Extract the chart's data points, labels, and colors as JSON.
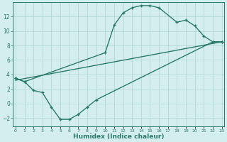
{
  "line1_x": [
    0,
    1,
    10,
    11,
    12,
    13,
    14,
    15,
    16,
    18,
    19,
    20,
    21,
    22,
    23
  ],
  "line1_y": [
    3.5,
    3.0,
    7.0,
    10.8,
    12.5,
    13.2,
    13.5,
    13.5,
    13.2,
    11.2,
    11.5,
    10.7,
    9.3,
    8.5,
    8.5
  ],
  "line2_x": [
    0,
    1,
    2,
    3,
    4,
    5,
    6,
    7,
    8,
    9,
    22,
    23
  ],
  "line2_y": [
    3.5,
    3.0,
    1.8,
    1.5,
    -0.5,
    -2.2,
    -2.2,
    -1.5,
    -0.5,
    0.5,
    8.5,
    8.5
  ],
  "line3_x": [
    0,
    23
  ],
  "line3_y": [
    3.2,
    8.5
  ],
  "color": "#2a7a6a",
  "bg_color": "#d4eeed",
  "grid_color": "#aed4d0",
  "xlabel": "Humidex (Indice chaleur)",
  "xlim": [
    -0.3,
    23.3
  ],
  "ylim": [
    -3.2,
    14.0
  ],
  "yticks": [
    -2,
    0,
    2,
    4,
    6,
    8,
    10,
    12
  ],
  "xticks": [
    0,
    1,
    2,
    3,
    4,
    5,
    6,
    7,
    8,
    9,
    10,
    11,
    12,
    13,
    14,
    15,
    16,
    17,
    18,
    19,
    20,
    21,
    22,
    23
  ],
  "marker": "+",
  "markersize": 3.5,
  "linewidth": 1.0,
  "xlabel_fontsize": 6.5,
  "ytick_fontsize": 5.5,
  "xtick_fontsize": 4.5
}
